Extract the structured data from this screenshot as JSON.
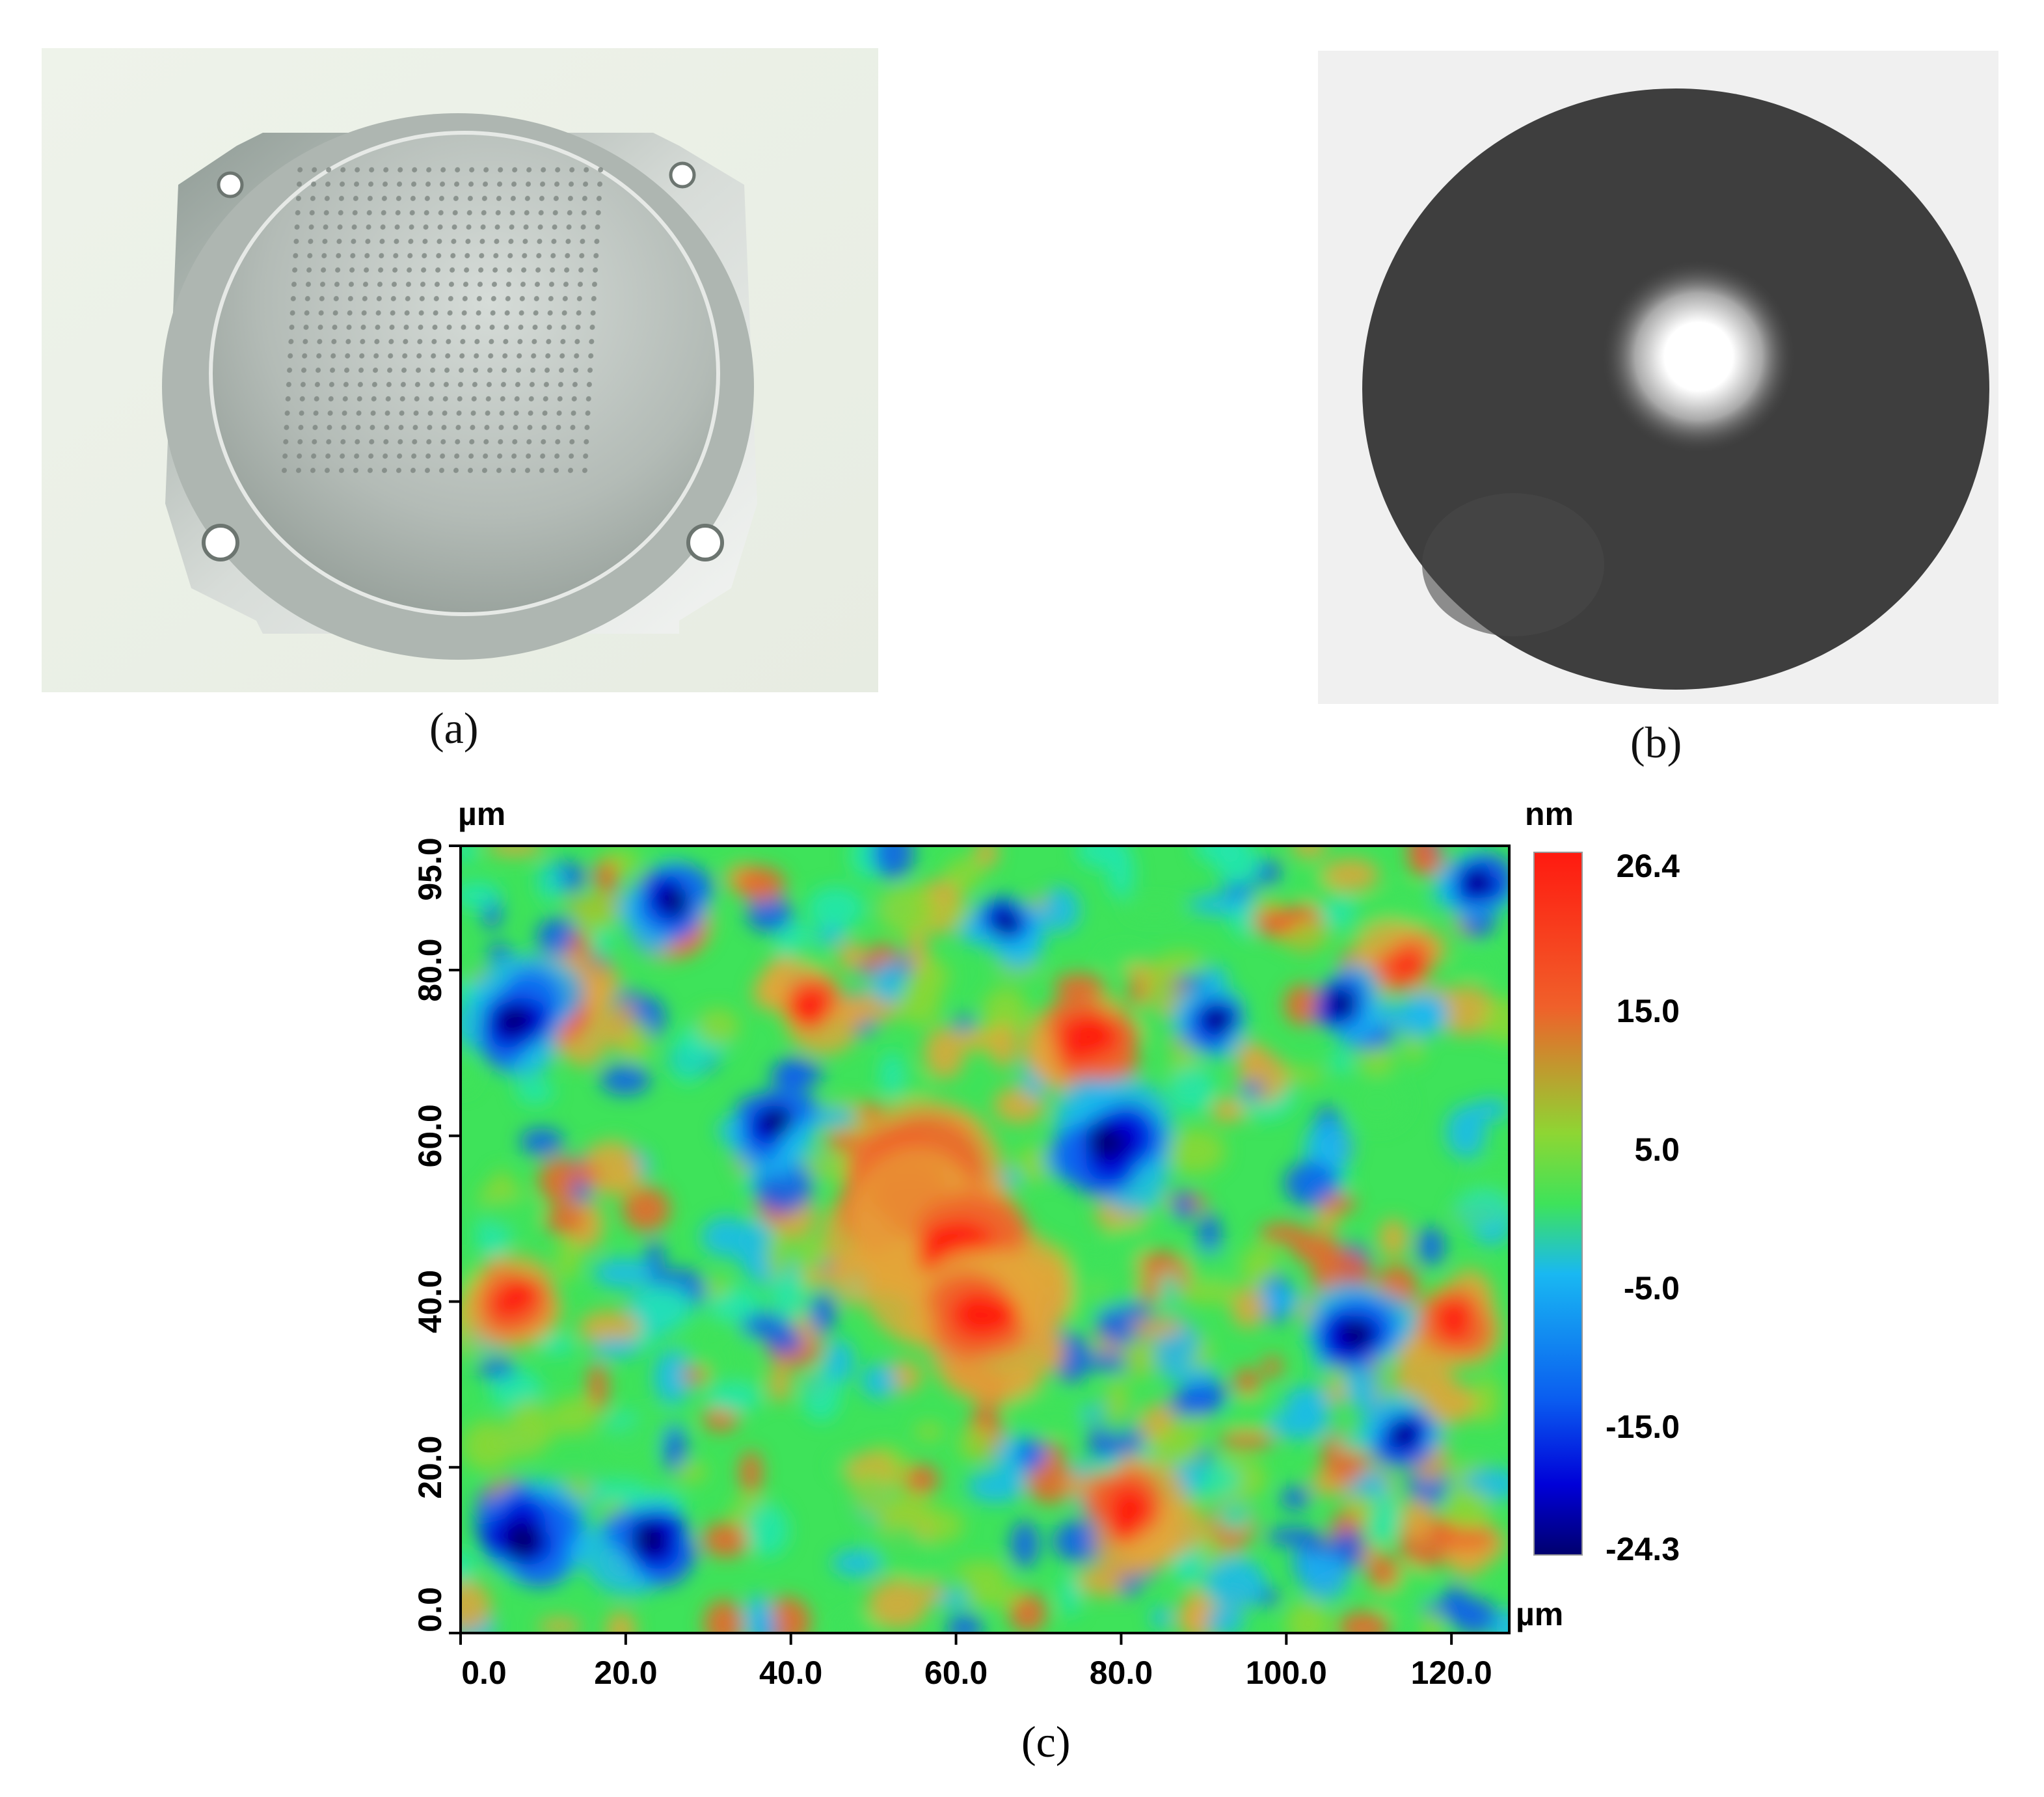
{
  "figure": {
    "panels": [
      {
        "id": "a",
        "caption": "(a)",
        "image": "aluminum-mirror-with-microlens-array-photo"
      },
      {
        "id": "b",
        "caption": "(b)",
        "image": "circular-aperture-far-field-spot-photo"
      },
      {
        "id": "c",
        "caption": "(c)",
        "image": "surface-height-map"
      }
    ]
  },
  "chart_data": {
    "type": "heatmap",
    "x_unit": "µm",
    "y_unit": "µm",
    "colorbar_unit": "nm",
    "x_ticks": [
      "0.0",
      "20.0",
      "40.0",
      "60.0",
      "80.0",
      "100.0",
      "120.0"
    ],
    "y_ticks": [
      "0.0",
      "20.0",
      "40.0",
      "60.0",
      "80.0",
      "95.0"
    ],
    "x_tick_values": [
      0,
      20,
      40,
      60,
      80,
      100,
      120
    ],
    "y_tick_values": [
      0,
      20,
      40,
      60,
      80,
      95
    ],
    "xlim": [
      0,
      127
    ],
    "ylim": [
      0,
      95
    ],
    "colorbar_ticks": [
      "26.4",
      "15.0",
      "5.0",
      "-5.0",
      "-15.0",
      "-24.3"
    ],
    "colorbar_tick_values": [
      26.4,
      15.0,
      5.0,
      -5.0,
      -15.0,
      -24.3
    ],
    "zlim": [
      -24.3,
      26.4
    ],
    "colormap": [
      "#00006e",
      "#0000d8",
      "#0a5cf0",
      "#19b8f2",
      "#22e6b0",
      "#3ee35a",
      "#8ed633",
      "#e3a53a",
      "#f0602a",
      "#ff1a10"
    ]
  }
}
